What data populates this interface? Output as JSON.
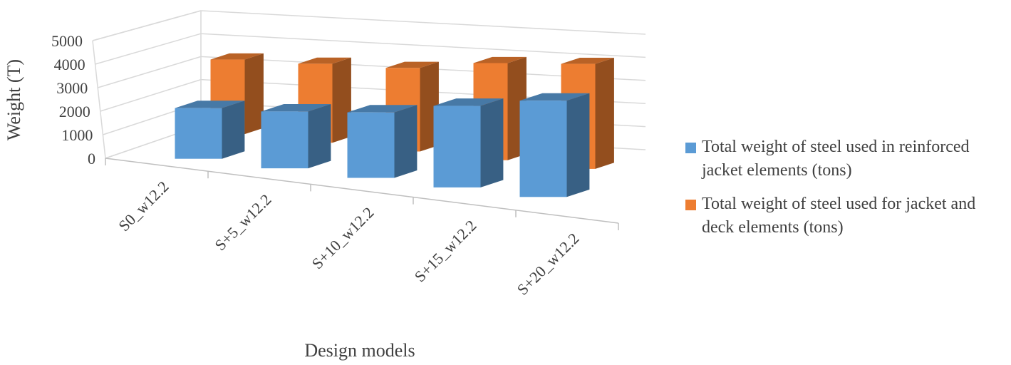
{
  "chart_data": {
    "type": "bar",
    "xlabel": "Design models",
    "ylabel": "Weight (T)",
    "ylim": [
      0,
      5000
    ],
    "yticks": [
      "0",
      "1000",
      "2000",
      "3000",
      "4000",
      "5000"
    ],
    "categories": [
      "S0_w12.2",
      "S+5_w12.2",
      "S+10_w12.2",
      "S+15_w12.2",
      "S+20_w12.2"
    ],
    "series": [
      {
        "name": "Total weight of steel used in reinforced jacket elements (tons)",
        "color": "#5B9BD5",
        "values": [
          2050,
          2300,
          2650,
          3300,
          3900
        ]
      },
      {
        "name": "Total weight of steel used for jacket and deck elements (tons)",
        "color": "#ED7D31",
        "values": [
          3300,
          3500,
          3700,
          4300,
          4650
        ]
      }
    ],
    "grid": true,
    "legend_position": "right",
    "style": "3d-clustered-column"
  }
}
